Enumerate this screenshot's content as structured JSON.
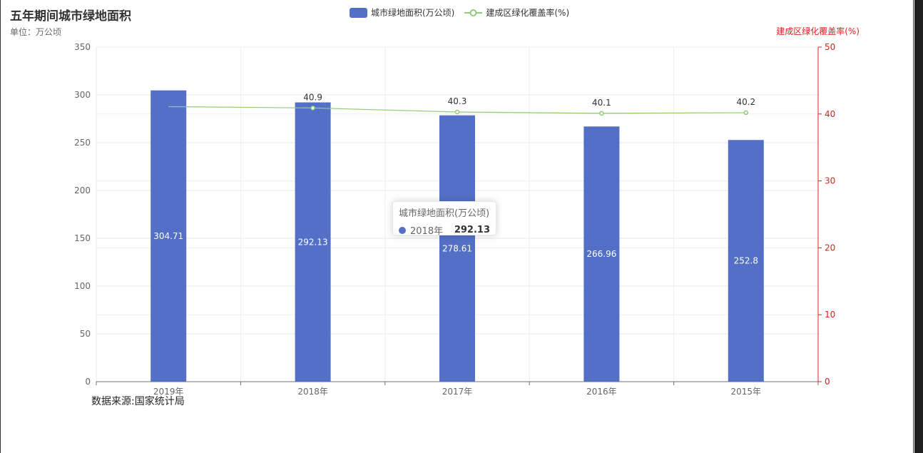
{
  "chart_data": {
    "type": "bar",
    "title": "五年期间城市绿地面积",
    "subtitle": "单位：万公顷",
    "source_note": "数据来源:国家统计局",
    "categories": [
      "2019年",
      "2018年",
      "2017年",
      "2016年",
      "2015年"
    ],
    "series": [
      {
        "name": "城市绿地面积(万公顷)",
        "type": "bar",
        "axis": "left",
        "values": [
          304.71,
          292.13,
          278.61,
          266.96,
          252.8
        ],
        "labels": [
          "304.71",
          "292.13",
          "278.61",
          "266.96",
          "252.8"
        ],
        "color": "#5470c6"
      },
      {
        "name": "建成区绿化覆盖率(%)",
        "type": "line",
        "axis": "right",
        "values": [
          41.1,
          40.9,
          40.3,
          40.1,
          40.2
        ],
        "labels": [
          "",
          "40.9",
          "40.3",
          "40.1",
          "40.2"
        ],
        "color": "#91cc75"
      }
    ],
    "y_left": {
      "min": 0,
      "max": 350,
      "ticks": [
        "0",
        "50",
        "100",
        "150",
        "200",
        "250",
        "300",
        "350"
      ],
      "color": "#666666"
    },
    "y_right": {
      "name": "建成区绿化覆盖率(%)",
      "min": 0,
      "max": 50,
      "ticks": [
        "0",
        "10",
        "20",
        "30",
        "40",
        "50"
      ],
      "color": "#e01f1f"
    },
    "grid": true,
    "legend_position": "top-center",
    "tooltip": {
      "title": "城市绿地面积(万公顷)",
      "category": "2018年",
      "value": "292.13"
    }
  }
}
